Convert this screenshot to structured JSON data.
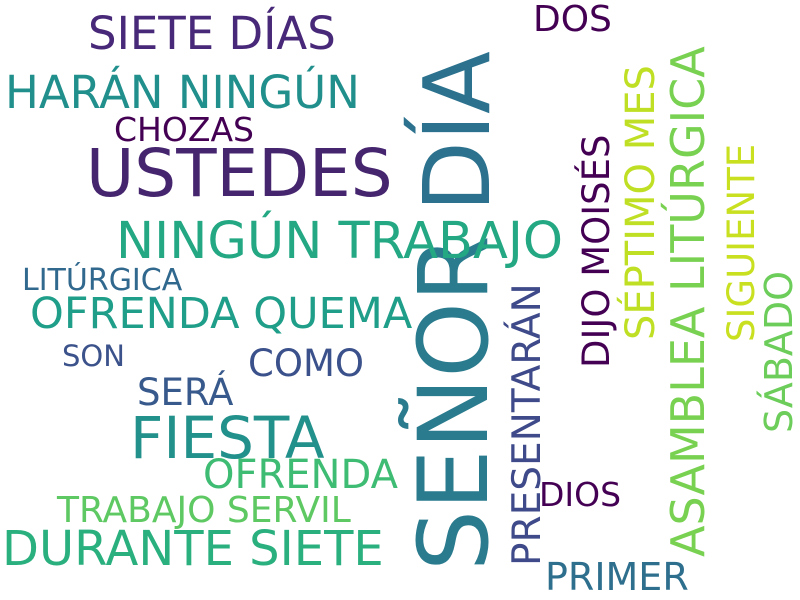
{
  "words": [
    {
      "text": "SEÑOR",
      "color": "#2a7b8e"
    },
    {
      "text": "DÍA",
      "color": "#2c728e"
    },
    {
      "text": "USTEDES",
      "color": "#46256f"
    },
    {
      "text": "FIESTA",
      "color": "#23918b"
    },
    {
      "text": "NINGÚN TRABAJO",
      "color": "#23a883"
    },
    {
      "text": "ASAMBLEA LITÚRGICA",
      "color": "#79d152"
    },
    {
      "text": "DURANTE SIETE",
      "color": "#2ab07f"
    },
    {
      "text": "SIETE DÍAS",
      "color": "#482878"
    },
    {
      "text": "HARÁN NINGÚN",
      "color": "#21908d"
    },
    {
      "text": "OFRENDA QUEMA",
      "color": "#1f9e89"
    },
    {
      "text": "PRESENTARÁN",
      "color": "#3e4a89"
    },
    {
      "text": "SÉPTIMO MES",
      "color": "#bfdf25"
    },
    {
      "text": "OFRENDA",
      "color": "#3fbc73"
    },
    {
      "text": "PRIMER",
      "color": "#2e6f8e"
    },
    {
      "text": "SÁBADO",
      "color": "#6ccd5a"
    },
    {
      "text": "TRABAJO SERVIL",
      "color": "#5ec962"
    },
    {
      "text": "DIJO MOISÉS",
      "color": "#440154"
    },
    {
      "text": "SIGUIENTE",
      "color": "#c8e020"
    },
    {
      "text": "DOS",
      "color": "#440154"
    },
    {
      "text": "COMO",
      "color": "#3b518b"
    },
    {
      "text": "SERÁ",
      "color": "#38598c"
    },
    {
      "text": "CHOZAS",
      "color": "#440154"
    },
    {
      "text": "DIOS",
      "color": "#440154"
    },
    {
      "text": "LITÚRGICA",
      "color": "#31688e"
    },
    {
      "text": "SON",
      "color": "#3b528b"
    }
  ]
}
